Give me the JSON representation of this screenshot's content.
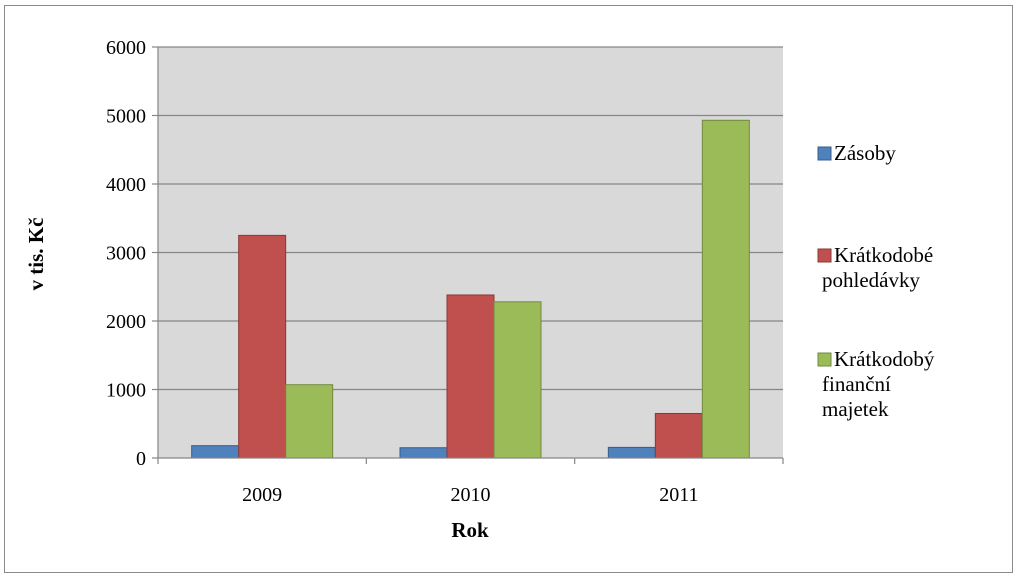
{
  "chart_data": {
    "type": "bar",
    "title": "",
    "xlabel": "Rok",
    "ylabel": "v tis. Kč",
    "ylim": [
      0,
      6000
    ],
    "yticks": [
      0,
      1000,
      2000,
      3000,
      4000,
      5000,
      6000
    ],
    "categories": [
      "2009",
      "2010",
      "2011"
    ],
    "series": [
      {
        "name": "Zásoby",
        "label_lines": [
          "Zásoby"
        ],
        "values": [
          180,
          150,
          155
        ],
        "color": "#4f81bd",
        "stroke": "#385d8a"
      },
      {
        "name": "Krátkodobé pohledávky",
        "label_lines": [
          "Krátkodobé",
          "pohledávky"
        ],
        "values": [
          3250,
          2380,
          650
        ],
        "color": "#c0504d",
        "stroke": "#8c3836"
      },
      {
        "name": "Krátkodobý finanční majetek",
        "label_lines": [
          "Krátkodobý",
          "finanční",
          "majetek"
        ],
        "values": [
          1070,
          2280,
          4930
        ],
        "color": "#9bbb59",
        "stroke": "#71893f"
      }
    ],
    "grid": true,
    "plot_background": "#d9d9d9",
    "legend_position": "right"
  }
}
